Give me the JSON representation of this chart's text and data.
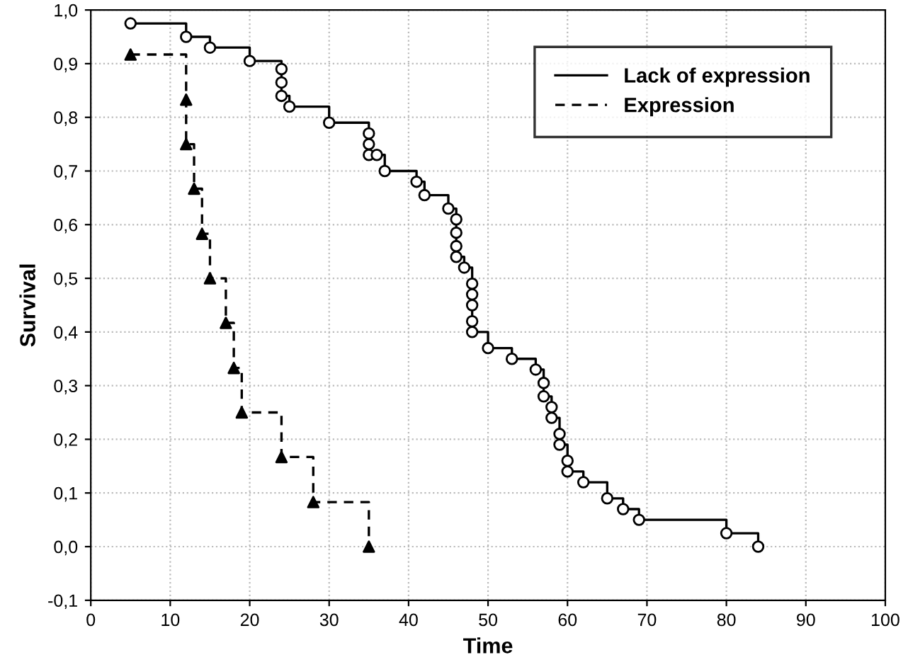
{
  "chart_data": {
    "type": "step",
    "xlabel": "Time",
    "ylabel": "Survival",
    "xlim": [
      0,
      100
    ],
    "xticks": [
      0,
      10,
      20,
      30,
      40,
      50,
      60,
      70,
      80,
      90,
      100
    ],
    "ylim": [
      -0.1,
      1.0
    ],
    "yticks": [
      {
        "value": -0.1,
        "label": "-0,1"
      },
      {
        "value": 0,
        "label": "0,0"
      },
      {
        "value": 0.1,
        "label": "0,1"
      },
      {
        "value": 0.2,
        "label": "0,2"
      },
      {
        "value": 0.3,
        "label": "0,3"
      },
      {
        "value": 0.4,
        "label": "0,4"
      },
      {
        "value": 0.5,
        "label": "0,5"
      },
      {
        "value": 0.6,
        "label": "0,6"
      },
      {
        "value": 0.7,
        "label": "0,7"
      },
      {
        "value": 0.8,
        "label": "0,8"
      },
      {
        "value": 0.9,
        "label": "0,9"
      },
      {
        "value": 1.0,
        "label": "1,0"
      }
    ],
    "grid": true,
    "legend": "top right",
    "series": [
      {
        "name": "Lack of expression",
        "color": "#000000",
        "line_style": "solid",
        "marker": "circle",
        "x": [
          5,
          12,
          15,
          20,
          24,
          24,
          24,
          25,
          30,
          35,
          35,
          35,
          36,
          37,
          41,
          42,
          45,
          46,
          46,
          46,
          46,
          47,
          48,
          48,
          48,
          48,
          48,
          50,
          53,
          56,
          57,
          57,
          58,
          58,
          59,
          59,
          60,
          60,
          62,
          65,
          67,
          69,
          80,
          84
        ],
        "values": [
          0.975,
          0.95,
          0.93,
          0.905,
          0.89,
          0.865,
          0.84,
          0.82,
          0.79,
          0.77,
          0.75,
          0.73,
          0.73,
          0.7,
          0.68,
          0.655,
          0.63,
          0.61,
          0.585,
          0.56,
          0.54,
          0.52,
          0.49,
          0.47,
          0.45,
          0.42,
          0.4,
          0.37,
          0.35,
          0.33,
          0.305,
          0.28,
          0.26,
          0.24,
          0.21,
          0.19,
          0.16,
          0.14,
          0.12,
          0.09,
          0.07,
          0.05,
          0.025,
          0.0
        ]
      },
      {
        "name": "Expression",
        "color": "#000000",
        "line_style": "dashed",
        "marker": "triangle",
        "x": [
          5,
          12,
          12,
          13,
          14,
          15,
          17,
          18,
          19,
          24,
          28,
          35
        ],
        "values": [
          0.917,
          0.833,
          0.75,
          0.667,
          0.583,
          0.5,
          0.417,
          0.333,
          0.25,
          0.167,
          0.083,
          0.0
        ]
      }
    ]
  }
}
